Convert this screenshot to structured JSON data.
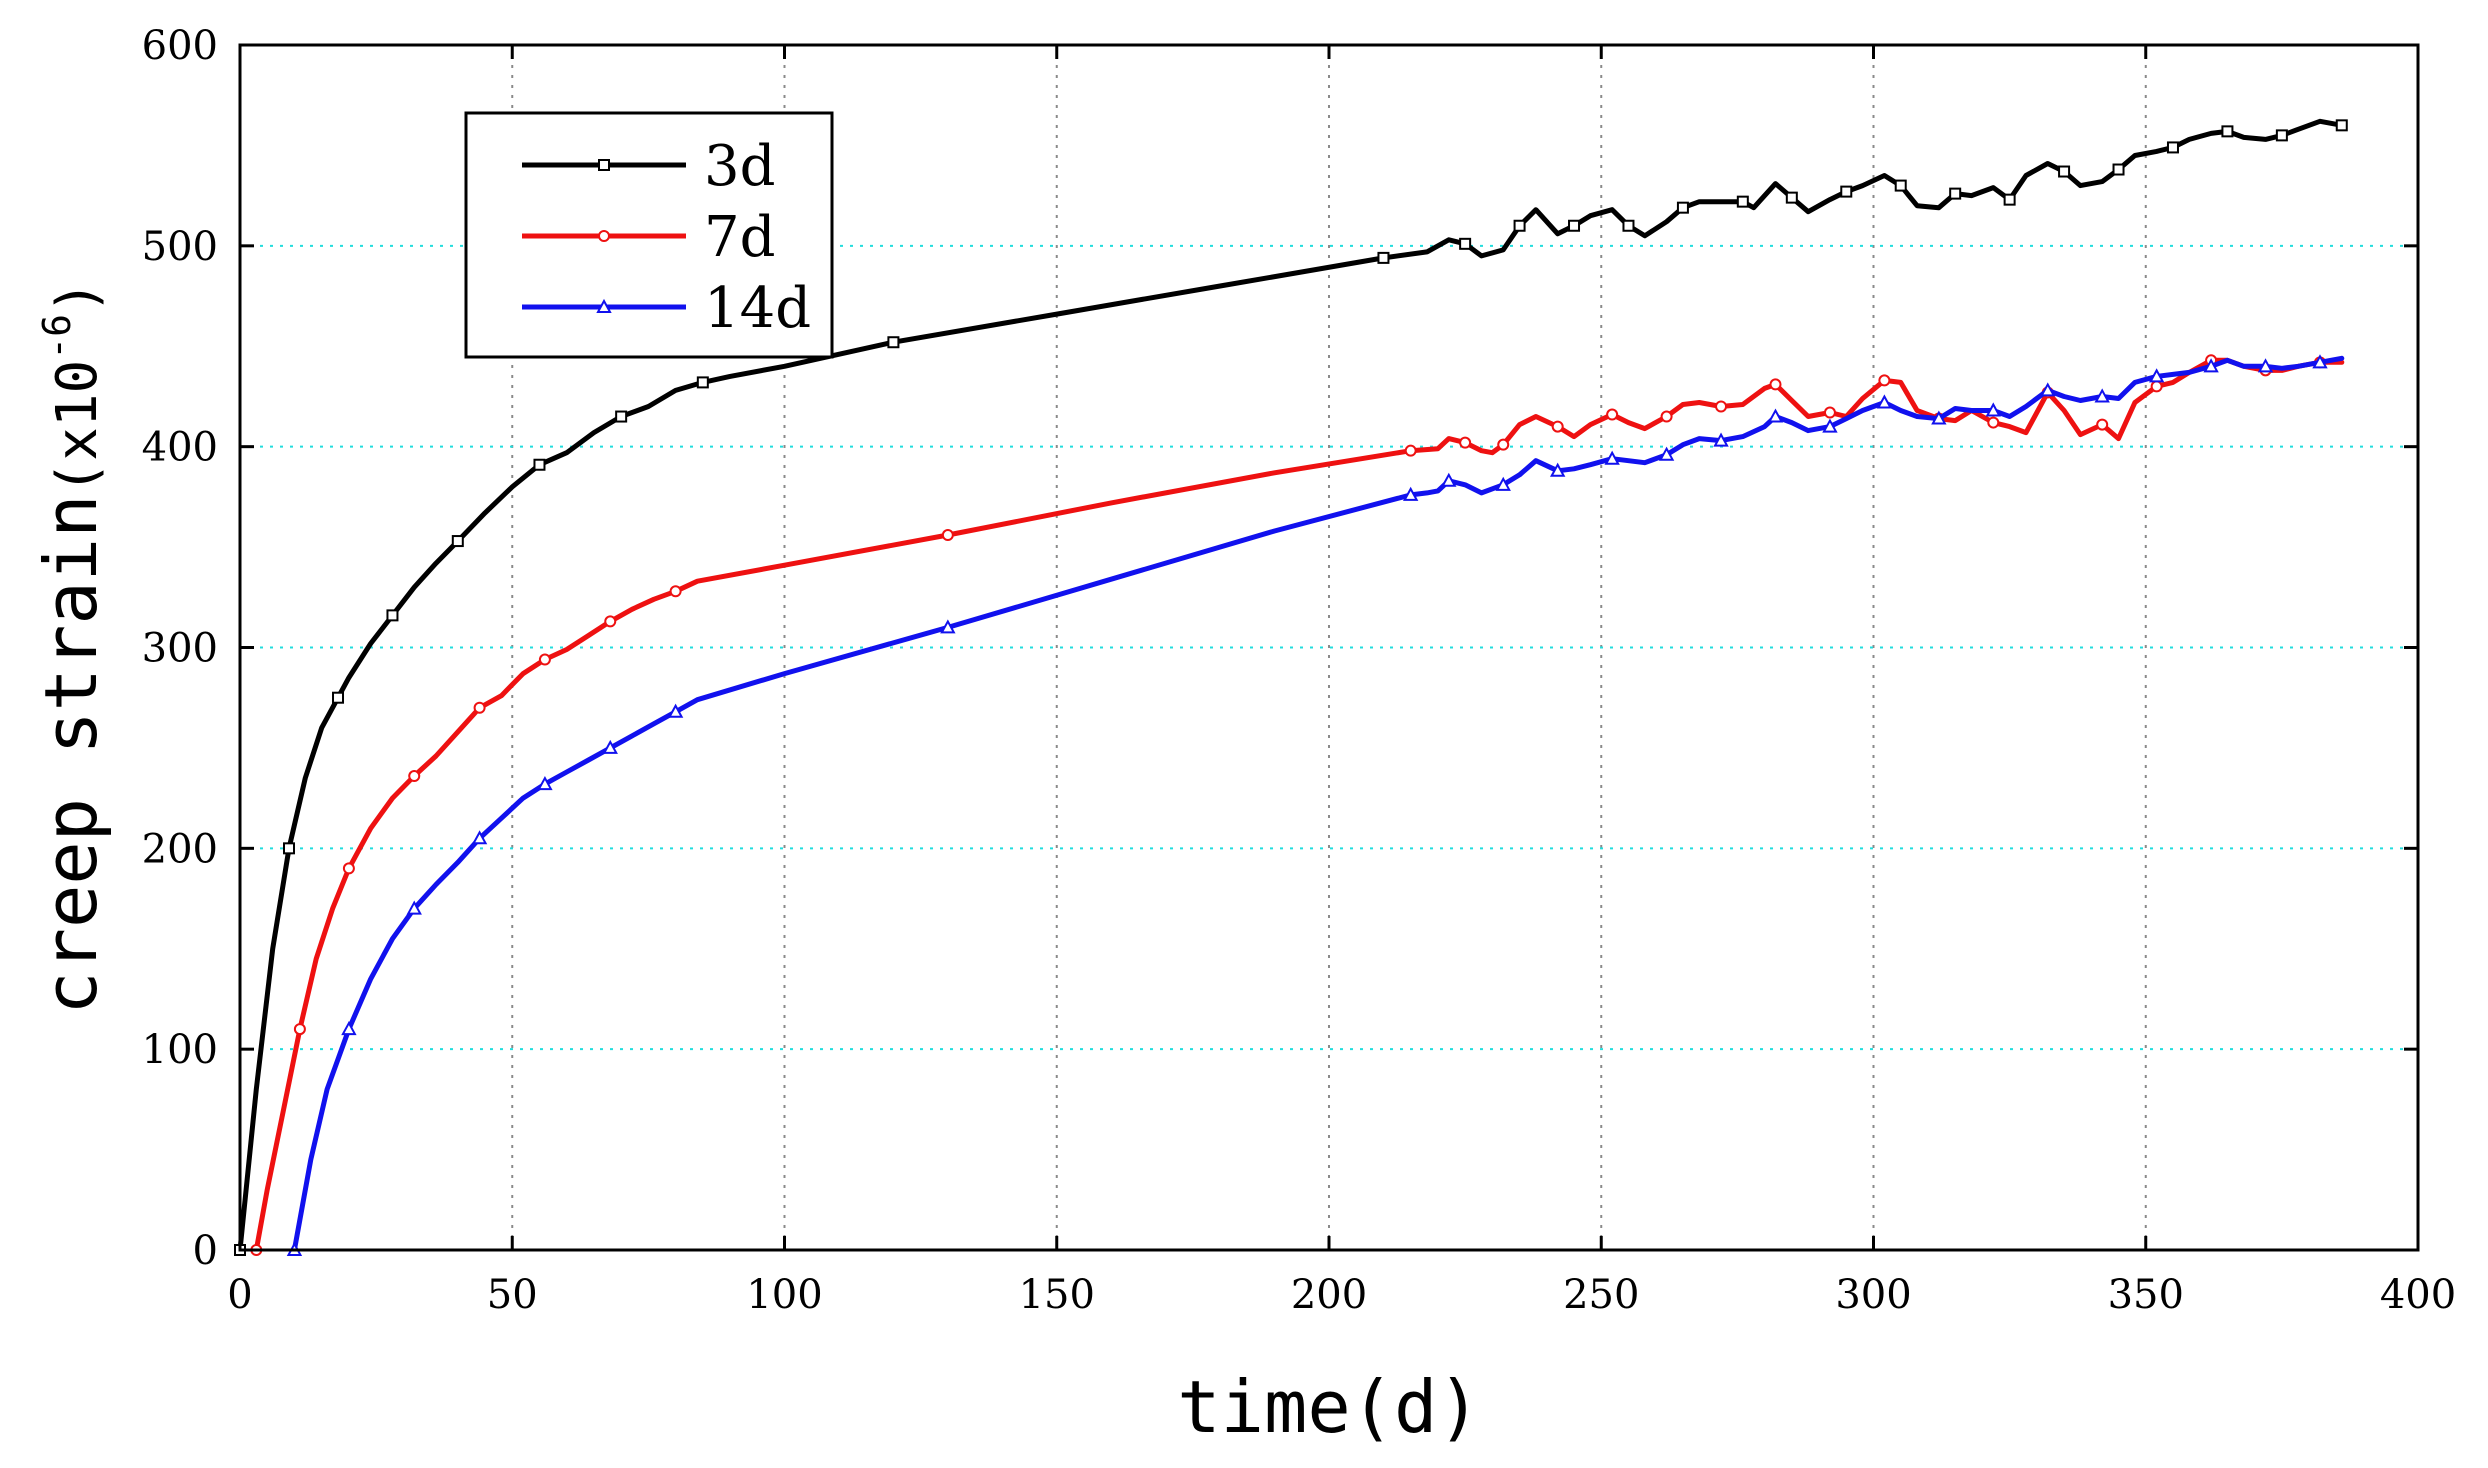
{
  "chart_data": {
    "type": "line",
    "xlabel": "time(d)",
    "ylabel": "creep strain",
    "ylabel_unit_base": "(x10",
    "ylabel_unit_exp": "-6",
    "ylabel_unit_close": ")",
    "xlim": [
      0,
      400
    ],
    "ylim": [
      0,
      600
    ],
    "xticks": [
      0,
      50,
      100,
      150,
      200,
      250,
      300,
      350,
      400
    ],
    "yticks": [
      0,
      100,
      200,
      300,
      400,
      500,
      600
    ],
    "xtick_labels": [
      "0",
      "50",
      "100",
      "150",
      "200",
      "250",
      "300",
      "350",
      "400"
    ],
    "ytick_labels": [
      "0",
      "100",
      "200",
      "300",
      "400",
      "500",
      "600"
    ],
    "grid": {
      "x": "dotted gray",
      "y": "dotted cyan"
    },
    "legend_position": "top-left",
    "series": [
      {
        "name": "3d",
        "color": "#000000",
        "marker": "square",
        "x": [
          0,
          3,
          6,
          9,
          12,
          15,
          18,
          20,
          24,
          28,
          32,
          36,
          40,
          45,
          50,
          55,
          60,
          65,
          70,
          75,
          80,
          85,
          90,
          100,
          120,
          150,
          180,
          210,
          218,
          222,
          225,
          228,
          232,
          235,
          238,
          242,
          245,
          248,
          252,
          255,
          258,
          262,
          265,
          268,
          272,
          276,
          278,
          282,
          285,
          288,
          292,
          295,
          298,
          302,
          305,
          308,
          312,
          315,
          318,
          322,
          325,
          328,
          332,
          335,
          338,
          342,
          345,
          348,
          352,
          355,
          358,
          362,
          365,
          368,
          372,
          375,
          378,
          382,
          386
        ],
        "y": [
          0,
          80,
          150,
          200,
          235,
          260,
          275,
          285,
          302,
          316,
          330,
          342,
          353,
          367,
          380,
          391,
          397,
          407,
          415,
          420,
          428,
          432,
          435,
          440,
          452,
          466,
          480,
          494,
          497,
          503,
          501,
          495,
          498,
          510,
          518,
          506,
          510,
          515,
          518,
          510,
          505,
          512,
          519,
          522,
          522,
          522,
          519,
          531,
          524,
          517,
          523,
          527,
          530,
          535,
          530,
          520,
          519,
          526,
          525,
          529,
          523,
          535,
          541,
          537,
          530,
          532,
          538,
          545,
          547,
          549,
          553,
          556,
          557,
          554,
          553,
          555,
          558,
          562,
          560
        ]
      },
      {
        "name": "7d",
        "color": "#ee1111",
        "marker": "circle",
        "x": [
          3,
          5,
          8,
          11,
          14,
          17,
          20,
          24,
          28,
          32,
          36,
          40,
          44,
          48,
          52,
          56,
          60,
          64,
          68,
          72,
          76,
          80,
          84,
          100,
          130,
          160,
          190,
          215,
          220,
          222,
          225,
          228,
          230,
          232,
          235,
          238,
          242,
          245,
          248,
          252,
          255,
          258,
          262,
          265,
          268,
          272,
          276,
          280,
          282,
          285,
          288,
          292,
          295,
          298,
          302,
          305,
          308,
          312,
          315,
          318,
          322,
          325,
          328,
          332,
          335,
          338,
          342,
          345,
          348,
          352,
          355,
          358,
          362,
          365,
          368,
          372,
          375,
          378,
          382,
          386
        ],
        "y": [
          0,
          30,
          70,
          110,
          145,
          170,
          190,
          210,
          225,
          236,
          246,
          258,
          270,
          276,
          287,
          294,
          299,
          306,
          313,
          319,
          324,
          328,
          333,
          341,
          356,
          372,
          387,
          398,
          399,
          404,
          402,
          398,
          397,
          401,
          411,
          415,
          410,
          405,
          411,
          416,
          412,
          409,
          415,
          421,
          422,
          420,
          421,
          429,
          431,
          423,
          415,
          417,
          415,
          424,
          433,
          432,
          418,
          414,
          413,
          418,
          412,
          410,
          407,
          427,
          418,
          406,
          411,
          404,
          422,
          430,
          432,
          437,
          443,
          443,
          440,
          438,
          438,
          440,
          442,
          442
        ]
      },
      {
        "name": "14d",
        "color": "#1111ee",
        "marker": "triangle",
        "x": [
          10,
          13,
          16,
          20,
          24,
          28,
          32,
          36,
          40,
          44,
          48,
          52,
          56,
          60,
          64,
          68,
          72,
          76,
          80,
          84,
          100,
          130,
          160,
          190,
          215,
          218,
          220,
          222,
          225,
          228,
          232,
          235,
          238,
          242,
          245,
          248,
          252,
          255,
          258,
          262,
          265,
          268,
          272,
          276,
          280,
          282,
          285,
          288,
          292,
          295,
          298,
          302,
          305,
          308,
          312,
          315,
          318,
          322,
          325,
          328,
          332,
          335,
          338,
          342,
          345,
          348,
          352,
          355,
          358,
          362,
          365,
          368,
          372,
          375,
          378,
          382,
          386
        ],
        "y": [
          0,
          45,
          80,
          110,
          135,
          155,
          170,
          182,
          193,
          205,
          215,
          225,
          232,
          238,
          244,
          250,
          256,
          262,
          268,
          274,
          287,
          310,
          334,
          358,
          376,
          377,
          378,
          383,
          381,
          377,
          381,
          386,
          393,
          388,
          389,
          391,
          394,
          393,
          392,
          396,
          401,
          404,
          403,
          405,
          410,
          415,
          412,
          408,
          410,
          414,
          418,
          422,
          418,
          415,
          414,
          419,
          418,
          418,
          415,
          420,
          428,
          425,
          423,
          425,
          424,
          432,
          435,
          436,
          437,
          440,
          443,
          440,
          440,
          439,
          440,
          442,
          444
        ]
      }
    ]
  }
}
